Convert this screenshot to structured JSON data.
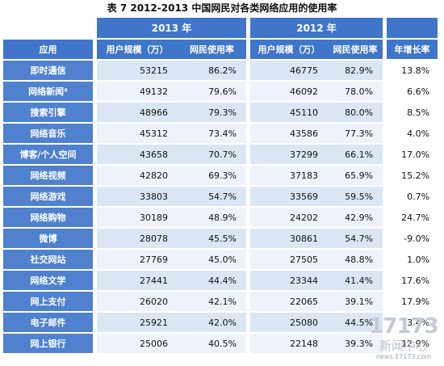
{
  "caption": "表 7  2012-2013 中国网民对各类网络应用的使用率",
  "header": {
    "year_2013": "2013 年",
    "year_2012": "2012 年",
    "col_app": "应用",
    "col_users_2013": "用户规模（万）",
    "col_rate_2013": "网民使用率",
    "col_users_2012": "用户规模（万）",
    "col_rate_2012": "网民使用率",
    "col_growth": "年增长率"
  },
  "rows": [
    {
      "app": "即时通信",
      "users_2013": "53215",
      "rate_2013": "86.2%",
      "users_2012": "46775",
      "rate_2012": "82.9%",
      "growth": "13.8%"
    },
    {
      "app": "网络新闻⁴",
      "users_2013": "49132",
      "rate_2013": "79.6%",
      "users_2012": "46092",
      "rate_2012": "78.0%",
      "growth": "6.6%"
    },
    {
      "app": "搜索引擎",
      "users_2013": "48966",
      "rate_2013": "79.3%",
      "users_2012": "45110",
      "rate_2012": "80.0%",
      "growth": "8.5%"
    },
    {
      "app": "网络音乐",
      "users_2013": "45312",
      "rate_2013": "73.4%",
      "users_2012": "43586",
      "rate_2012": "77.3%",
      "growth": "4.0%"
    },
    {
      "app": "博客/个人空间",
      "users_2013": "43658",
      "rate_2013": "70.7%",
      "users_2012": "37299",
      "rate_2012": "66.1%",
      "growth": "17.0%"
    },
    {
      "app": "网络视频",
      "users_2013": "42820",
      "rate_2013": "69.3%",
      "users_2012": "37183",
      "rate_2012": "65.9%",
      "growth": "15.2%"
    },
    {
      "app": "网络游戏",
      "users_2013": "33803",
      "rate_2013": "54.7%",
      "users_2012": "33569",
      "rate_2012": "59.5%",
      "growth": "0.7%"
    },
    {
      "app": "网络购物",
      "users_2013": "30189",
      "rate_2013": "48.9%",
      "users_2012": "24202",
      "rate_2012": "42.9%",
      "growth": "24.7%"
    },
    {
      "app": "微博",
      "users_2013": "28078",
      "rate_2013": "45.5%",
      "users_2012": "30861",
      "rate_2012": "54.7%",
      "growth": "-9.0%"
    },
    {
      "app": "社交网站",
      "users_2013": "27769",
      "rate_2013": "45.0%",
      "users_2012": "27505",
      "rate_2012": "48.8%",
      "growth": "1.0%"
    },
    {
      "app": "网络文学",
      "users_2013": "27441",
      "rate_2013": "44.4%",
      "users_2012": "23344",
      "rate_2012": "41.4%",
      "growth": "17.6%"
    },
    {
      "app": "网上支付",
      "users_2013": "26020",
      "rate_2013": "42.1%",
      "users_2012": "22065",
      "rate_2012": "39.1%",
      "growth": "17.9%"
    },
    {
      "app": "电子邮件",
      "users_2013": "25921",
      "rate_2013": "42.0%",
      "users_2012": "25080",
      "rate_2012": "44.5%",
      "growth": "3.4%"
    },
    {
      "app": "网上银行",
      "users_2013": "25006",
      "rate_2013": "40.5%",
      "users_2012": "22148",
      "rate_2012": "39.3%",
      "growth": "12.9%"
    }
  ],
  "watermark": {
    "logo": "17173",
    "sub": "新闻中心",
    "url": "news.17173.com"
  }
}
